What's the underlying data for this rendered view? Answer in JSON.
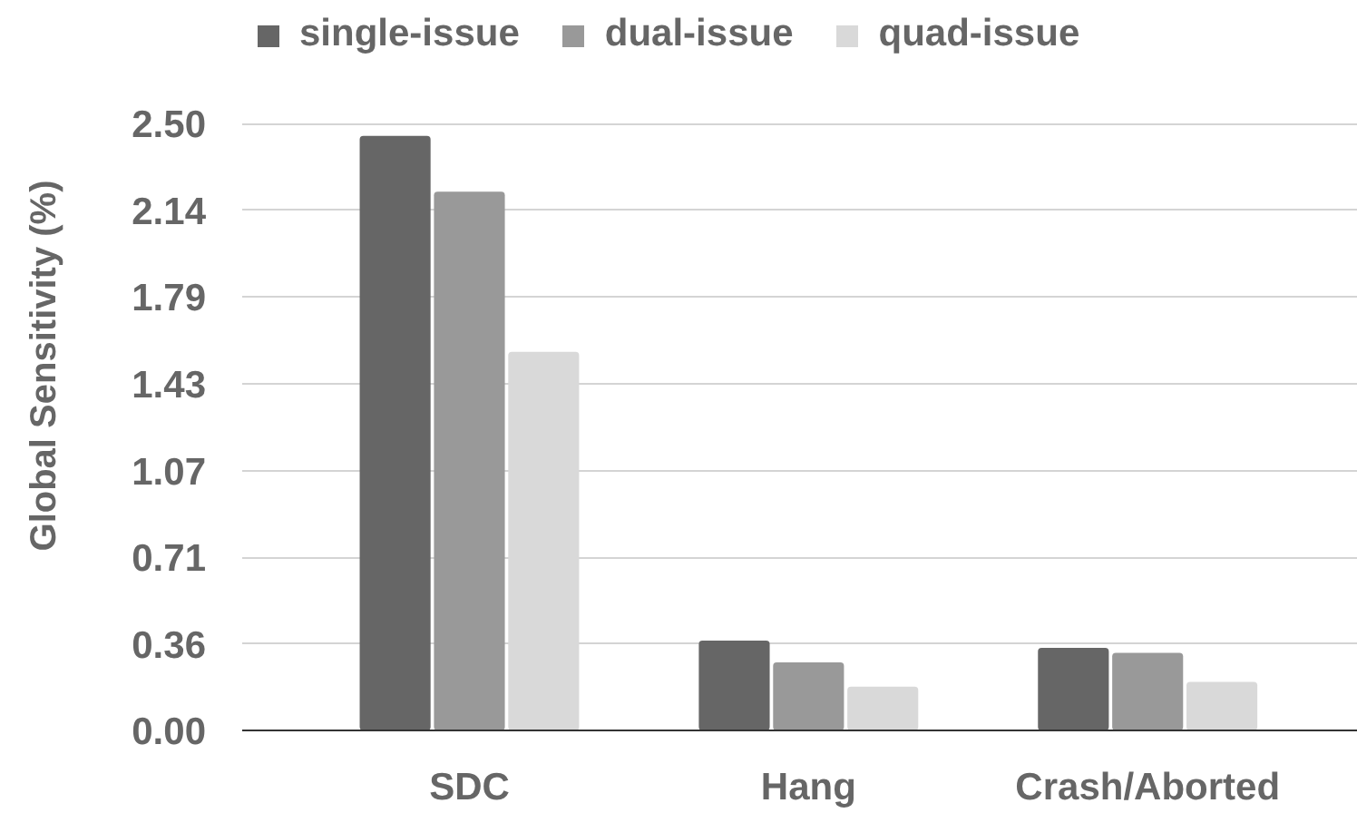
{
  "chart_data": {
    "type": "bar",
    "ylabel": "Global Sensitivity (%)",
    "categories": [
      "SDC",
      "Hang",
      "Crash/Aborted"
    ],
    "series": [
      {
        "name": "single-issue",
        "color": "#666666",
        "values": [
          2.45,
          0.37,
          0.34
        ]
      },
      {
        "name": "dual-issue",
        "color": "#999999",
        "values": [
          2.22,
          0.28,
          0.32
        ]
      },
      {
        "name": "quad-issue",
        "color": "#d9d9d9",
        "values": [
          1.56,
          0.18,
          0.2
        ]
      }
    ],
    "ylim": [
      0,
      2.5
    ],
    "yticks": [
      {
        "value": 0,
        "label": "0.00"
      },
      {
        "value": 0.357,
        "label": "0.36"
      },
      {
        "value": 0.714,
        "label": "0.71"
      },
      {
        "value": 1.071,
        "label": "1.07"
      },
      {
        "value": 1.429,
        "label": "1.43"
      },
      {
        "value": 1.786,
        "label": "1.79"
      },
      {
        "value": 2.143,
        "label": "2.14"
      },
      {
        "value": 2.5,
        "label": "2.50"
      }
    ],
    "grid": "y",
    "legend": "top"
  }
}
